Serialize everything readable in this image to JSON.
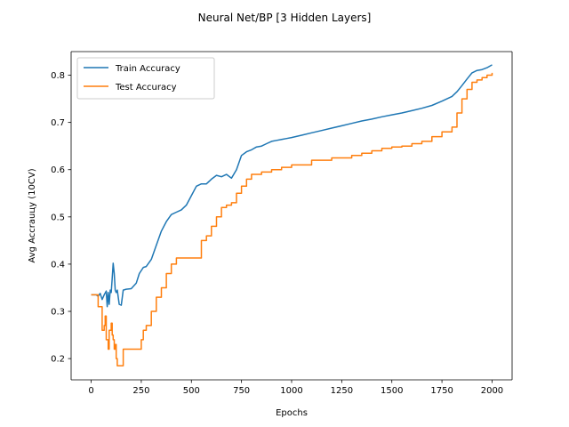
{
  "chart_data": {
    "type": "line",
    "title": "Neural Net/BP [3 Hidden Layers]",
    "xlabel": "Epochs",
    "ylabel": "Avg Accrauцy (10CV)",
    "xlim": [
      -100,
      2100
    ],
    "ylim": [
      0.155,
      0.85
    ],
    "xticks": [
      0,
      250,
      500,
      750,
      1000,
      1250,
      1500,
      1750,
      2000
    ],
    "yticks": [
      0.2,
      0.3,
      0.4,
      0.5,
      0.6,
      0.7,
      0.8
    ],
    "xtick_labels": [
      "0",
      "250",
      "500",
      "750",
      "1000",
      "1250",
      "1500",
      "1750",
      "2000"
    ],
    "ytick_labels": [
      "0.2",
      "0.3",
      "0.4",
      "0.5",
      "0.6",
      "0.7",
      "0.8"
    ],
    "grid": false,
    "legend_position": "top-left",
    "series": [
      {
        "name": "Train Accuracy",
        "color": "#1f77b4",
        "step": false,
        "x": [
          0,
          25,
          35,
          45,
          55,
          65,
          75,
          80,
          85,
          90,
          95,
          100,
          105,
          110,
          115,
          120,
          125,
          130,
          140,
          150,
          160,
          175,
          200,
          225,
          240,
          260,
          275,
          300,
          325,
          350,
          375,
          400,
          425,
          450,
          475,
          500,
          525,
          550,
          575,
          600,
          625,
          650,
          675,
          700,
          725,
          750,
          775,
          800,
          825,
          850,
          875,
          900,
          925,
          950,
          975,
          1000,
          1050,
          1100,
          1150,
          1200,
          1250,
          1300,
          1350,
          1400,
          1450,
          1500,
          1550,
          1600,
          1650,
          1700,
          1750,
          1800,
          1825,
          1850,
          1875,
          1900,
          1925,
          1950,
          1975,
          2000
        ],
        "y": [
          0.335,
          0.335,
          0.332,
          0.338,
          0.325,
          0.335,
          0.343,
          0.31,
          0.34,
          0.315,
          0.345,
          0.34,
          0.37,
          0.402,
          0.38,
          0.345,
          0.34,
          0.345,
          0.315,
          0.313,
          0.345,
          0.347,
          0.348,
          0.36,
          0.38,
          0.393,
          0.395,
          0.41,
          0.44,
          0.47,
          0.49,
          0.505,
          0.51,
          0.515,
          0.525,
          0.545,
          0.565,
          0.57,
          0.57,
          0.58,
          0.588,
          0.585,
          0.59,
          0.582,
          0.6,
          0.63,
          0.638,
          0.642,
          0.648,
          0.65,
          0.655,
          0.66,
          0.662,
          0.664,
          0.666,
          0.668,
          0.673,
          0.678,
          0.683,
          0.688,
          0.693,
          0.698,
          0.703,
          0.707,
          0.712,
          0.716,
          0.72,
          0.725,
          0.73,
          0.736,
          0.745,
          0.755,
          0.765,
          0.778,
          0.792,
          0.805,
          0.81,
          0.812,
          0.816,
          0.822
        ]
      },
      {
        "name": "Test Accuracy",
        "color": "#ff7f0e",
        "step": true,
        "x": [
          0,
          25,
          35,
          45,
          55,
          65,
          70,
          75,
          85,
          90,
          100,
          105,
          110,
          115,
          120,
          125,
          130,
          140,
          160,
          200,
          250,
          260,
          275,
          300,
          325,
          350,
          375,
          400,
          425,
          450,
          500,
          550,
          575,
          600,
          625,
          650,
          675,
          700,
          725,
          750,
          775,
          800,
          850,
          900,
          950,
          1000,
          1100,
          1200,
          1300,
          1350,
          1400,
          1450,
          1500,
          1550,
          1600,
          1650,
          1700,
          1750,
          1800,
          1825,
          1850,
          1875,
          1900,
          1925,
          1950,
          1975,
          2000
        ],
        "y": [
          0.335,
          0.335,
          0.31,
          0.31,
          0.26,
          0.27,
          0.29,
          0.24,
          0.22,
          0.26,
          0.275,
          0.25,
          0.24,
          0.22,
          0.23,
          0.2,
          0.185,
          0.185,
          0.22,
          0.22,
          0.24,
          0.26,
          0.27,
          0.3,
          0.33,
          0.35,
          0.38,
          0.4,
          0.413,
          0.413,
          0.413,
          0.45,
          0.46,
          0.48,
          0.5,
          0.52,
          0.525,
          0.53,
          0.55,
          0.565,
          0.58,
          0.59,
          0.595,
          0.6,
          0.605,
          0.61,
          0.62,
          0.625,
          0.63,
          0.635,
          0.64,
          0.645,
          0.648,
          0.65,
          0.655,
          0.66,
          0.67,
          0.68,
          0.69,
          0.72,
          0.75,
          0.77,
          0.785,
          0.79,
          0.795,
          0.8,
          0.805
        ]
      }
    ]
  }
}
